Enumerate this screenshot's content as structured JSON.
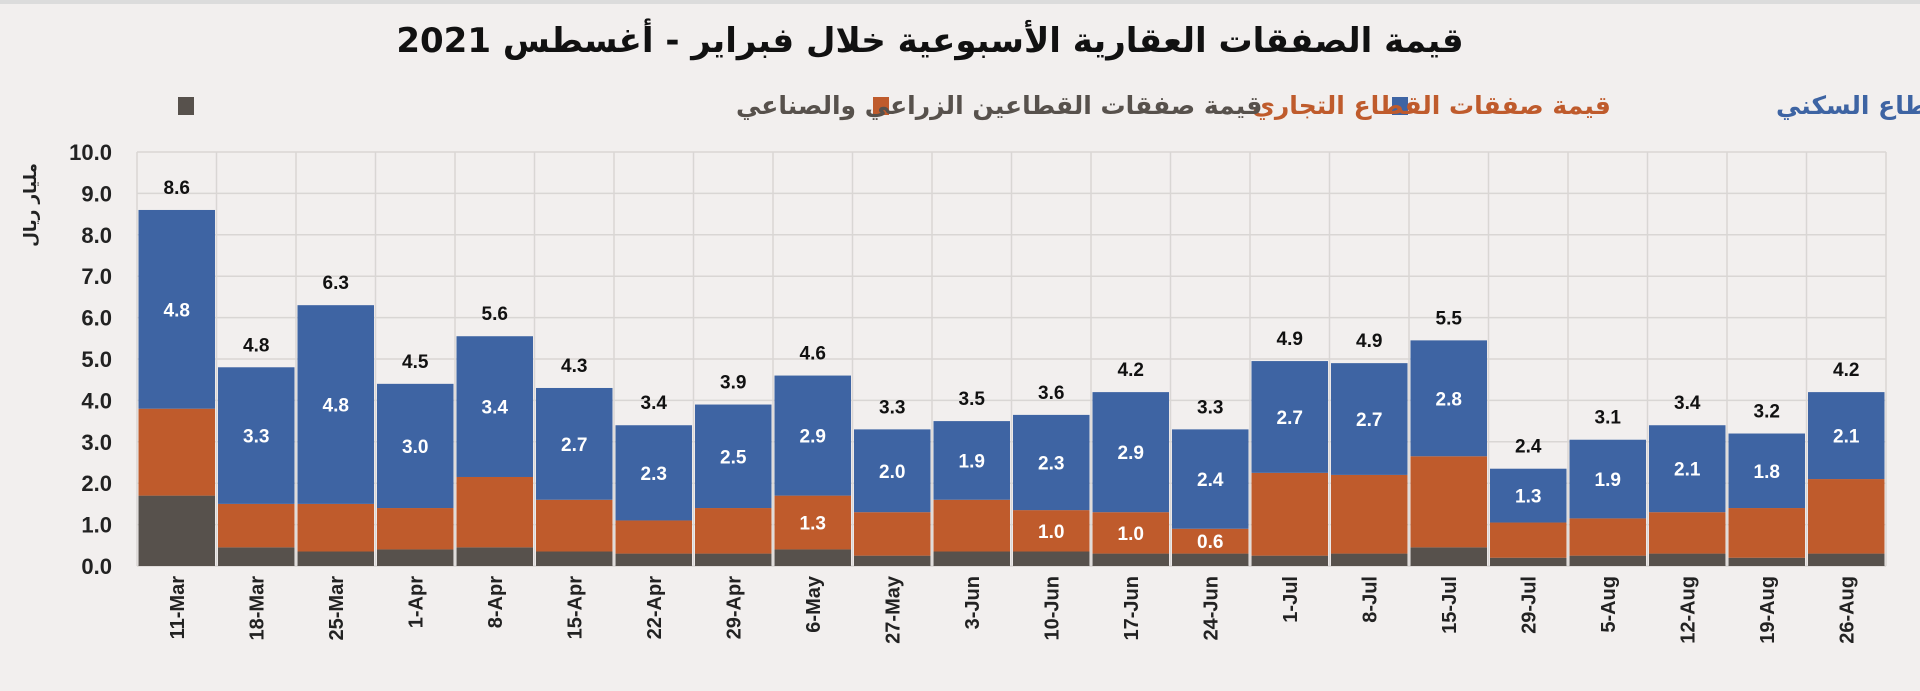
{
  "chart_data": {
    "type": "bar",
    "stacked": true,
    "title": "قيمة الصفقات العقارية الأسبوعية خلال فبراير - أغسطس 2021",
    "ylabel": "مليار ريال",
    "xlabel": "",
    "ylim": [
      0,
      10
    ],
    "yticks": [
      "0.0",
      "1.0",
      "2.0",
      "3.0",
      "4.0",
      "5.0",
      "6.0",
      "7.0",
      "8.0",
      "9.0",
      "10.0"
    ],
    "grid": true,
    "legend_position": "top",
    "categories": [
      "11-Mar",
      "18-Mar",
      "25-Mar",
      "1-Apr",
      "8-Apr",
      "15-Apr",
      "22-Apr",
      "29-Apr",
      "6-May",
      "27-May",
      "3-Jun",
      "10-Jun",
      "17-Jun",
      "24-Jun",
      "1-Jul",
      "8-Jul",
      "15-Jul",
      "29-Jul",
      "5-Aug",
      "12-Aug",
      "19-Aug",
      "26-Aug"
    ],
    "series": [
      {
        "name": "قيمة صفقات القطاعين الزراعي والصناعي",
        "color": "#57514c",
        "values": [
          1.7,
          0.45,
          0.35,
          0.4,
          0.45,
          0.35,
          0.3,
          0.3,
          0.4,
          0.25,
          0.35,
          0.35,
          0.3,
          0.3,
          0.25,
          0.3,
          0.45,
          0.2,
          0.25,
          0.3,
          0.2,
          0.3
        ],
        "labels": [
          "",
          "",
          "",
          "",
          "",
          "",
          "",
          "",
          "",
          "",
          "",
          "",
          "",
          "",
          "",
          "",
          "",
          "",
          "",
          "",
          "",
          ""
        ]
      },
      {
        "name": "قيمة صفقات القطاع التجاري",
        "color": "#bf5b2c",
        "values": [
          2.1,
          1.05,
          1.15,
          1.0,
          1.7,
          1.25,
          0.8,
          1.1,
          1.3,
          1.05,
          1.25,
          1.0,
          1.0,
          0.6,
          2.0,
          1.9,
          2.2,
          0.85,
          0.9,
          1.0,
          1.2,
          1.8
        ],
        "labels": [
          "",
          "",
          "",
          "",
          "",
          "",
          "",
          "",
          "1.3",
          "",
          "",
          "1.0",
          "1.0",
          "0.6",
          "",
          "",
          "",
          "",
          "",
          "",
          "",
          ""
        ]
      },
      {
        "name": "قيمة صفقات القطاع السكني",
        "color": "#3e64a3",
        "values": [
          4.8,
          3.3,
          4.8,
          3.0,
          3.4,
          2.7,
          2.3,
          2.5,
          2.9,
          2.0,
          1.9,
          2.3,
          2.9,
          2.4,
          2.7,
          2.7,
          2.8,
          1.3,
          1.9,
          2.1,
          1.8,
          2.1
        ],
        "labels": [
          "4.8",
          "3.3",
          "4.8",
          "3.0",
          "3.4",
          "2.7",
          "2.3",
          "2.5",
          "2.9",
          "2.0",
          "1.9",
          "2.3",
          "2.9",
          "2.4",
          "2.7",
          "2.7",
          "2.8",
          "1.3",
          "1.9",
          "2.1",
          "1.8",
          "2.1"
        ]
      }
    ],
    "totals": [
      "8.6",
      "4.8",
      "6.3",
      "4.5",
      "5.6",
      "4.3",
      "3.4",
      "3.9",
      "4.6",
      "3.3",
      "3.5",
      "3.6",
      "4.2",
      "3.3",
      "4.9",
      "4.9",
      "5.5",
      "2.4",
      "3.1",
      "3.4",
      "3.2",
      "4.2"
    ]
  }
}
